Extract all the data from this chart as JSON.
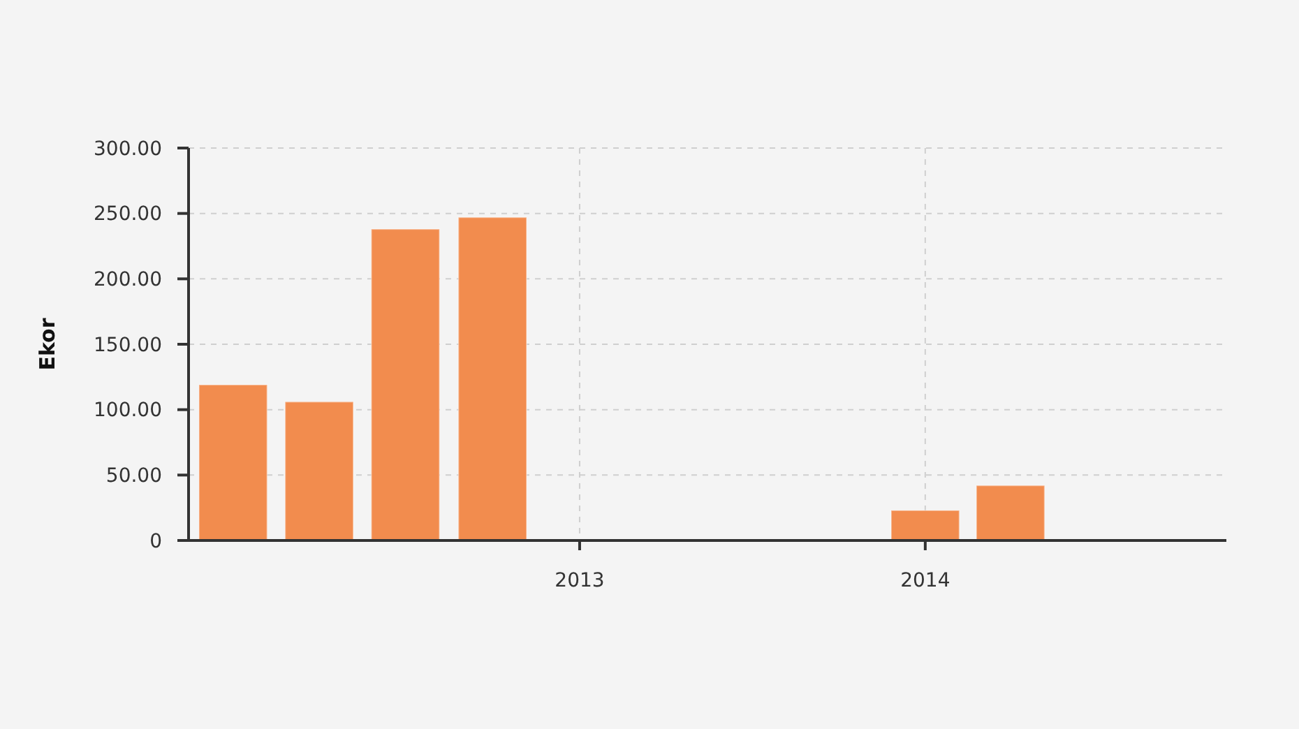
{
  "chart_data": {
    "type": "bar",
    "ylabel": "Ekor",
    "x": [
      "2012-01",
      "2012-04",
      "2012-07",
      "2012-10",
      "2014-01",
      "2014-04"
    ],
    "values": [
      119,
      106,
      238,
      247,
      23,
      42
    ],
    "color": "#f28c4e",
    "xlim": [
      "2011-11-15",
      "2014-11-15"
    ],
    "xticks": [
      "2013",
      "2014"
    ],
    "ylim": [
      0,
      300
    ],
    "yticks": [
      0,
      {
        "value": 50,
        "label": "50.00"
      },
      {
        "value": 100,
        "label": "100.00"
      },
      {
        "value": 150,
        "label": "150.00"
      },
      {
        "value": 200,
        "label": "200.00"
      },
      {
        "value": 250,
        "label": "250.00"
      },
      {
        "value": 300,
        "label": "300.00"
      }
    ],
    "grid": true
  }
}
